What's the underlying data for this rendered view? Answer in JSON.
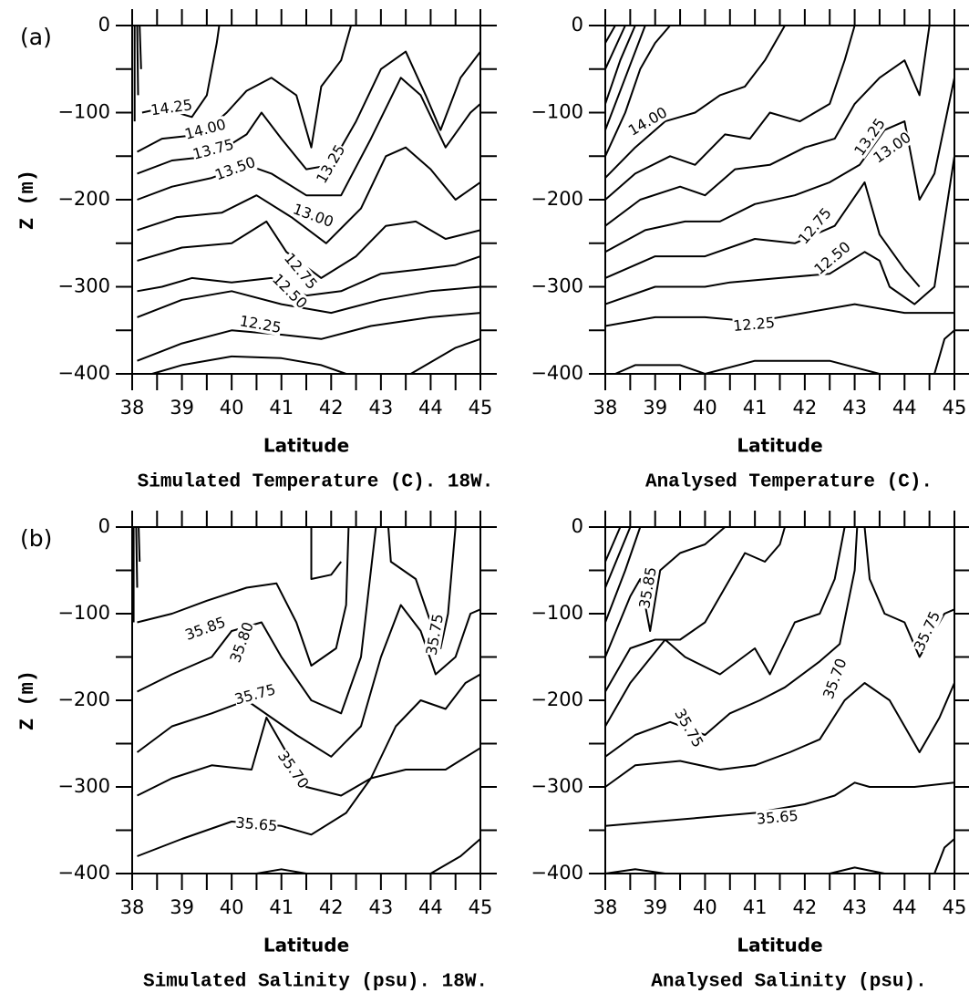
{
  "chart_data": [
    {
      "type": "contour",
      "panel_label": "(a)",
      "title": "Simulated Temperature (C). 18W.",
      "xlabel": "Latitude",
      "ylabel": "Z (m)",
      "xlim": [
        38,
        45
      ],
      "ylim": [
        -400,
        0
      ],
      "xticks": [
        38,
        39,
        40,
        41,
        42,
        43,
        44,
        45
      ],
      "yticks": [
        {
          "value": 0,
          "label": "0"
        },
        {
          "value": -100,
          "label": "−100"
        },
        {
          "value": -200,
          "label": "−200"
        },
        {
          "value": -300,
          "label": "−300"
        },
        {
          "value": -400,
          "label": "−400"
        }
      ],
      "contour_labels": [
        14.25,
        {
          "value": 14,
          "label": "14.00"
        },
        13.75,
        {
          "value": 13.5,
          "label": "13.50"
        },
        13.25,
        {
          "value": 13,
          "label": "13.00"
        },
        12.75,
        {
          "value": 12.5,
          "label": "12.50"
        },
        12.25
      ]
    },
    {
      "type": "contour",
      "title": "Analysed Temperature (C).",
      "xlabel": "Latitude",
      "xlim": [
        38,
        45
      ],
      "ylim": [
        -400,
        0
      ],
      "xticks": [
        38,
        39,
        40,
        41,
        42,
        43,
        44,
        45
      ],
      "yticks": [
        {
          "value": 0,
          "label": "0"
        },
        {
          "value": -100,
          "label": "−100"
        },
        {
          "value": -200,
          "label": "−200"
        },
        {
          "value": -300,
          "label": "−300"
        },
        {
          "value": -400,
          "label": "−400"
        }
      ],
      "contour_labels": [
        {
          "value": 14,
          "label": "14.00"
        },
        13.25,
        {
          "value": 13,
          "label": "13.00"
        },
        12.75,
        {
          "value": 12.5,
          "label": "12.50"
        },
        12.25
      ]
    },
    {
      "type": "contour",
      "panel_label": "(b)",
      "title": "Simulated Salinity (psu). 18W.",
      "xlabel": "Latitude",
      "ylabel": "Z (m)",
      "xlim": [
        38,
        45
      ],
      "ylim": [
        -400,
        0
      ],
      "xticks": [
        38,
        39,
        40,
        41,
        42,
        43,
        44,
        45
      ],
      "yticks": [
        {
          "value": 0,
          "label": "0"
        },
        {
          "value": -100,
          "label": "−100"
        },
        {
          "value": -200,
          "label": "−200"
        },
        {
          "value": -300,
          "label": "−300"
        },
        {
          "value": -400,
          "label": "−400"
        }
      ],
      "contour_labels": [
        35.85,
        {
          "value": 35.8,
          "label": "35.80"
        },
        35.75,
        {
          "value": 35.7,
          "label": "35.70"
        },
        35.65,
        35.75
      ]
    },
    {
      "type": "contour",
      "title": "Analysed Salinity (psu).",
      "xlabel": "Latitude",
      "xlim": [
        38,
        45
      ],
      "ylim": [
        -400,
        0
      ],
      "xticks": [
        38,
        39,
        40,
        41,
        42,
        43,
        44,
        45
      ],
      "yticks": [
        {
          "value": 0,
          "label": "0"
        },
        {
          "value": -100,
          "label": "−100"
        },
        {
          "value": -200,
          "label": "−200"
        },
        {
          "value": -300,
          "label": "−300"
        },
        {
          "value": -400,
          "label": "−400"
        }
      ],
      "contour_labels": [
        35.85,
        35.75,
        {
          "value": 35.7,
          "label": "35.70"
        },
        35.65,
        35.75
      ]
    }
  ]
}
